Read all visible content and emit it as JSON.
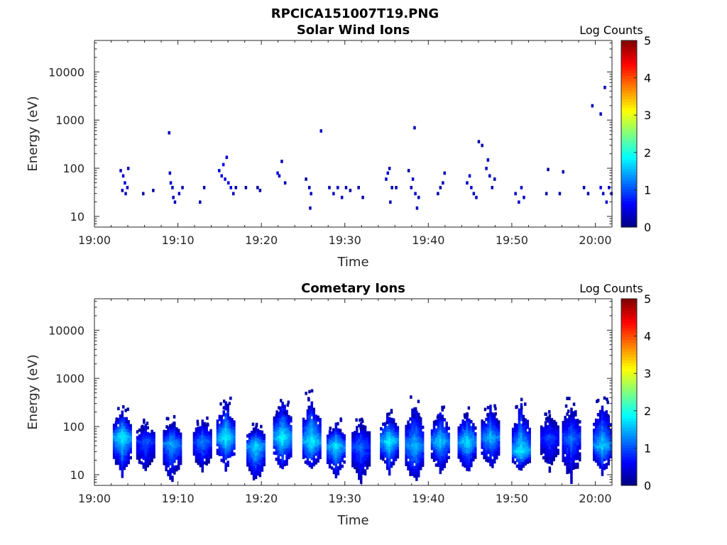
{
  "figure": {
    "filename_title": "RPCICA151007T19.PNG"
  },
  "colormap": {
    "name": "jet",
    "stops": [
      "#00007f",
      "#0000ff",
      "#007fff",
      "#00ffff",
      "#7fff7f",
      "#ffff00",
      "#ff7f00",
      "#ff0000",
      "#7f0000"
    ]
  },
  "chart_data": [
    {
      "type": "heatmap",
      "title": "Solar Wind Ions",
      "xlabel": "Time",
      "ylabel": "Energy (eV)",
      "x_ticks": [
        "19:00",
        "19:10",
        "19:20",
        "19:30",
        "19:40",
        "19:50",
        "20:00"
      ],
      "x_range_minutes": [
        0,
        62
      ],
      "y_scale": "log",
      "y_range": [
        6,
        45000
      ],
      "y_ticks": [
        10,
        100,
        1000,
        10000
      ],
      "colorbar": {
        "label": "Log Counts",
        "range": [
          0,
          5
        ],
        "ticks": [
          "0",
          "1",
          "2",
          "3",
          "4",
          "5"
        ]
      },
      "points": [
        [
          3.0,
          90,
          0.4
        ],
        [
          3.3,
          70,
          0.4
        ],
        [
          3.5,
          50,
          0.5
        ],
        [
          3.8,
          40,
          0.4
        ],
        [
          3.2,
          35,
          0.3
        ],
        [
          3.6,
          30,
          0.3
        ],
        [
          3.9,
          100,
          0.3
        ],
        [
          5.7,
          30,
          0.2
        ],
        [
          6.9,
          35,
          0.2
        ],
        [
          8.8,
          550,
          0.3
        ],
        [
          8.9,
          80,
          0.3
        ],
        [
          9.0,
          50,
          0.4
        ],
        [
          9.2,
          40,
          0.4
        ],
        [
          9.3,
          25,
          0.3
        ],
        [
          9.5,
          20,
          0.3
        ],
        [
          10.0,
          30,
          0.3
        ],
        [
          10.4,
          40,
          0.2
        ],
        [
          12.5,
          20,
          0.2
        ],
        [
          13.0,
          40,
          0.2
        ],
        [
          14.8,
          90,
          0.5
        ],
        [
          15.1,
          70,
          0.6
        ],
        [
          15.3,
          120,
          0.6
        ],
        [
          15.5,
          60,
          0.5
        ],
        [
          15.7,
          170,
          0.4
        ],
        [
          15.9,
          50,
          0.4
        ],
        [
          16.2,
          40,
          0.5
        ],
        [
          16.5,
          30,
          0.3
        ],
        [
          16.8,
          40,
          0.3
        ],
        [
          18.0,
          40,
          0.2
        ],
        [
          19.4,
          40,
          0.2
        ],
        [
          19.7,
          35,
          0.2
        ],
        [
          21.8,
          80,
          0.4
        ],
        [
          22.0,
          70,
          0.4
        ],
        [
          22.3,
          140,
          0.3
        ],
        [
          22.7,
          50,
          0.3
        ],
        [
          25.2,
          60,
          0.2
        ],
        [
          25.6,
          40,
          0.3
        ],
        [
          25.8,
          30,
          0.3
        ],
        [
          25.7,
          15,
          0.3
        ],
        [
          27.0,
          600,
          0.3
        ],
        [
          28.0,
          40,
          0.3
        ],
        [
          28.5,
          30,
          0.3
        ],
        [
          29.0,
          40,
          0.3
        ],
        [
          29.5,
          25,
          0.3
        ],
        [
          30.0,
          40,
          0.3
        ],
        [
          30.5,
          35,
          0.2
        ],
        [
          31.5,
          40,
          0.2
        ],
        [
          32.0,
          25,
          0.2
        ],
        [
          34.8,
          60,
          0.4
        ],
        [
          35.0,
          80,
          0.4
        ],
        [
          35.2,
          100,
          0.3
        ],
        [
          35.5,
          40,
          0.3
        ],
        [
          35.3,
          20,
          0.3
        ],
        [
          36.0,
          40,
          0.2
        ],
        [
          37.5,
          90,
          0.2
        ],
        [
          37.8,
          40,
          0.3
        ],
        [
          38.0,
          60,
          0.4
        ],
        [
          38.3,
          30,
          0.4
        ],
        [
          38.5,
          15,
          0.4
        ],
        [
          38.7,
          25,
          0.3
        ],
        [
          38.2,
          700,
          0.3
        ],
        [
          41.0,
          30,
          0.2
        ],
        [
          41.3,
          40,
          0.2
        ],
        [
          41.6,
          50,
          0.3
        ],
        [
          41.8,
          80,
          0.3
        ],
        [
          44.5,
          50,
          0.3
        ],
        [
          44.8,
          70,
          0.4
        ],
        [
          45.0,
          40,
          0.4
        ],
        [
          45.3,
          30,
          0.3
        ],
        [
          45.6,
          25,
          0.3
        ],
        [
          45.9,
          360,
          0.2
        ],
        [
          46.3,
          300,
          0.2
        ],
        [
          46.8,
          100,
          0.3
        ],
        [
          47.0,
          150,
          0.3
        ],
        [
          47.2,
          70,
          0.3
        ],
        [
          47.5,
          40,
          0.3
        ],
        [
          47.8,
          60,
          0.2
        ],
        [
          50.3,
          30,
          0.4
        ],
        [
          50.7,
          20,
          0.4
        ],
        [
          51.0,
          40,
          0.4
        ],
        [
          51.3,
          25,
          0.3
        ],
        [
          54.0,
          30,
          0.2
        ],
        [
          54.2,
          95,
          0.2
        ],
        [
          55.6,
          30,
          0.2
        ],
        [
          56.0,
          85,
          0.2
        ],
        [
          58.5,
          40,
          0.2
        ],
        [
          59.0,
          30,
          0.2
        ],
        [
          59.5,
          2000,
          0.3
        ],
        [
          60.5,
          1350,
          0.3
        ],
        [
          61.0,
          4800,
          0.3
        ],
        [
          60.5,
          40,
          0.5
        ],
        [
          60.8,
          30,
          0.4
        ],
        [
          61.2,
          20,
          0.4
        ],
        [
          61.5,
          40,
          0.4
        ],
        [
          61.8,
          30,
          0.3
        ]
      ]
    },
    {
      "type": "heatmap",
      "title": "Cometary Ions",
      "xlabel": "Time",
      "ylabel": "Energy (eV)",
      "x_ticks": [
        "19:00",
        "19:10",
        "19:20",
        "19:30",
        "19:40",
        "19:50",
        "20:00"
      ],
      "x_range_minutes": [
        0,
        62
      ],
      "y_scale": "log",
      "y_range": [
        6,
        45000
      ],
      "y_ticks": [
        10,
        100,
        1000,
        10000
      ],
      "colorbar": {
        "label": "Log Counts",
        "range": [
          0,
          5
        ],
        "ticks": [
          "0",
          "1",
          "2",
          "3",
          "4",
          "5"
        ]
      },
      "bursts": [
        {
          "t": 3.2,
          "peak": 1.9,
          "e_center": 60,
          "top": 230,
          "bottom": 8
        },
        {
          "t": 6.0,
          "peak": 1.1,
          "e_center": 50,
          "top": 130,
          "bottom": 10
        },
        {
          "t": 9.2,
          "peak": 1.5,
          "e_center": 45,
          "top": 150,
          "bottom": 6
        },
        {
          "t": 12.8,
          "peak": 1.3,
          "e_center": 50,
          "top": 150,
          "bottom": 10
        },
        {
          "t": 15.6,
          "peak": 1.9,
          "e_center": 60,
          "top": 330,
          "bottom": 12
        },
        {
          "t": 19.2,
          "peak": 1.8,
          "e_center": 40,
          "top": 120,
          "bottom": 6
        },
        {
          "t": 22.4,
          "peak": 1.9,
          "e_center": 60,
          "top": 420,
          "bottom": 10
        },
        {
          "t": 25.9,
          "peak": 1.9,
          "e_center": 50,
          "top": 450,
          "bottom": 10
        },
        {
          "t": 28.8,
          "peak": 1.8,
          "e_center": 40,
          "top": 130,
          "bottom": 8
        },
        {
          "t": 31.8,
          "peak": 1.2,
          "e_center": 40,
          "top": 150,
          "bottom": 6
        },
        {
          "t": 35.2,
          "peak": 1.9,
          "e_center": 50,
          "top": 220,
          "bottom": 10
        },
        {
          "t": 38.2,
          "peak": 1.6,
          "e_center": 40,
          "top": 350,
          "bottom": 6
        },
        {
          "t": 41.3,
          "peak": 1.7,
          "e_center": 50,
          "top": 230,
          "bottom": 10
        },
        {
          "t": 44.5,
          "peak": 1.8,
          "e_center": 50,
          "top": 220,
          "bottom": 10
        },
        {
          "t": 47.3,
          "peak": 1.6,
          "e_center": 60,
          "top": 300,
          "bottom": 12
        },
        {
          "t": 51.0,
          "peak": 1.9,
          "e_center": 30,
          "top": 350,
          "bottom": 12
        },
        {
          "t": 54.4,
          "peak": 1.0,
          "e_center": 60,
          "top": 200,
          "bottom": 12
        },
        {
          "t": 57.0,
          "peak": 1.2,
          "e_center": 60,
          "top": 330,
          "bottom": 6
        },
        {
          "t": 60.7,
          "peak": 1.7,
          "e_center": 40,
          "top": 400,
          "bottom": 10
        }
      ]
    }
  ]
}
